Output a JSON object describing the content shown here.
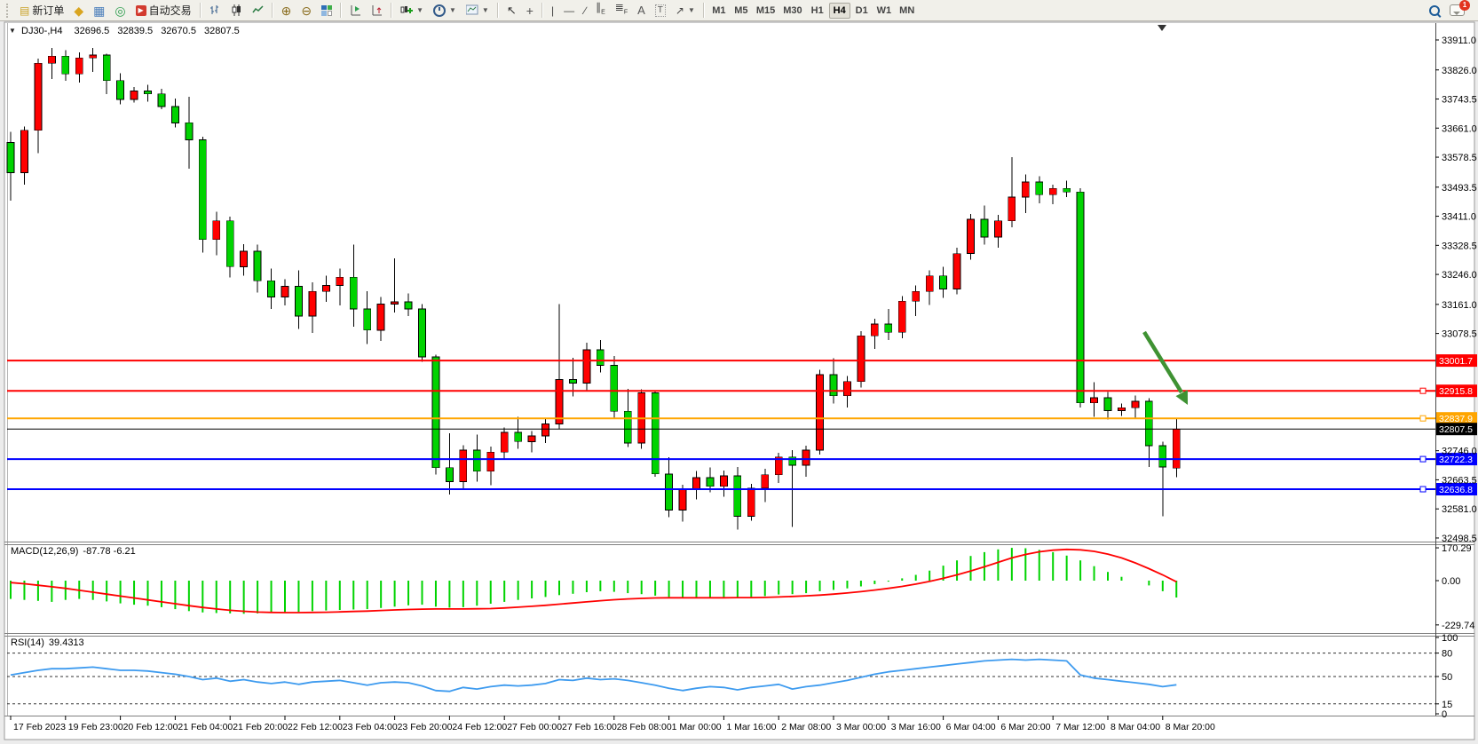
{
  "toolbar": {
    "new_order_label": "新订单",
    "autotrade_label": "自动交易",
    "timeframes": [
      "M1",
      "M5",
      "M15",
      "M30",
      "H1",
      "H4",
      "D1",
      "W1",
      "MN"
    ],
    "active_timeframe": "H4",
    "notification_count": "1",
    "icons": [
      "new-order-icon",
      "gold-diamond-icon",
      "charts-window-icon",
      "signals-icon",
      "autotrade-icon",
      "bar-chart-icon",
      "candlestick-chart-icon",
      "line-chart-icon",
      "zoom-in-icon",
      "zoom-out-icon",
      "tile-windows-icon",
      "data-window-icon",
      "navigator-icon",
      "new-chart-icon",
      "period-icon",
      "template-icon",
      "cursor-icon",
      "crosshair-icon",
      "vertical-line-icon",
      "horizontal-line-icon",
      "trendline-icon",
      "channel-icon",
      "fibonacci-icon",
      "text-icon",
      "text-label-icon",
      "arrows-icon",
      "search-icon",
      "chat-icon"
    ]
  },
  "chart": {
    "title": {
      "symbol": "DJ30-,H4",
      "open": "32696.5",
      "high": "32839.5",
      "low": "32670.5",
      "close": "32807.5"
    },
    "colors": {
      "bull": "#ff0000",
      "bear": "#00d300",
      "current_line": "#000000",
      "arrow": "#3f9233",
      "rsi": "#3e9bef",
      "macd_hist": "#00d300",
      "macd_signal": "#ff0000"
    },
    "y_axis": [
      {
        "v": 33911.0,
        "label": "33911.0"
      },
      {
        "v": 33826.0,
        "label": "33826.0"
      },
      {
        "v": 33743.5,
        "label": "33743.5"
      },
      {
        "v": 33661.0,
        "label": "33661.0"
      },
      {
        "v": 33578.5,
        "label": "33578.5"
      },
      {
        "v": 33493.5,
        "label": "33493.5"
      },
      {
        "v": 33411.0,
        "label": "33411.0"
      },
      {
        "v": 33328.5,
        "label": "33328.5"
      },
      {
        "v": 33246.0,
        "label": "33246.0"
      },
      {
        "v": 33161.0,
        "label": "33161.0"
      },
      {
        "v": 33078.5,
        "label": "33078.5"
      },
      {
        "v": 32746.0,
        "label": "32746.0"
      },
      {
        "v": 32663.5,
        "label": "32663.5"
      },
      {
        "v": 32581.0,
        "label": "32581.0"
      },
      {
        "v": 32498.5,
        "label": "32498.5"
      }
    ],
    "h_lines": [
      {
        "price": 33001.7,
        "label": "33001.7",
        "color": "#ff0000",
        "handle": false,
        "current": false
      },
      {
        "price": 32915.8,
        "label": "32915.8",
        "color": "#ff0000",
        "handle": true,
        "current": false
      },
      {
        "price": 32837.9,
        "label": "32837.9",
        "color": "#ffa500",
        "handle": true,
        "current": false
      },
      {
        "price": 32807.5,
        "label": "32807.5",
        "color": "#000000",
        "handle": false,
        "current": true
      },
      {
        "price": 32722.3,
        "label": "32722.3",
        "color": "#0000ff",
        "handle": true,
        "current": false
      },
      {
        "price": 32636.8,
        "label": "32636.8",
        "color": "#0000ff",
        "handle": true,
        "current": false
      }
    ],
    "time_labels": [
      "17 Feb 2023",
      "19 Feb 23:00",
      "20 Feb 12:00",
      "21 Feb 04:00",
      "21 Feb 20:00",
      "22 Feb 12:00",
      "23 Feb 04:00",
      "23 Feb 20:00",
      "24 Feb 12:00",
      "27 Feb 00:00",
      "27 Feb 16:00",
      "28 Feb 08:00",
      "1 Mar 00:00",
      "1 Mar 16:00",
      "2 Mar 08:00",
      "3 Mar 00:00",
      "3 Mar 16:00",
      "6 Mar 04:00",
      "6 Mar 20:00",
      "7 Mar 12:00",
      "8 Mar 04:00",
      "8 Mar 20:00"
    ]
  },
  "chart_data": {
    "type": "candlestick",
    "note": "red = bullish, green = bearish (CN convention), values [open,high,low,close]",
    "candles": [
      [
        33620,
        33650,
        33455,
        33535
      ],
      [
        33535,
        33665,
        33500,
        33655
      ],
      [
        33655,
        33858,
        33590,
        33845
      ],
      [
        33845,
        33888,
        33800,
        33865
      ],
      [
        33865,
        33882,
        33795,
        33815
      ],
      [
        33815,
        33876,
        33790,
        33860
      ],
      [
        33860,
        33888,
        33820,
        33868
      ],
      [
        33868,
        33872,
        33758,
        33796
      ],
      [
        33796,
        33816,
        33728,
        33742
      ],
      [
        33742,
        33778,
        33734,
        33766
      ],
      [
        33766,
        33784,
        33736,
        33758
      ],
      [
        33758,
        33772,
        33714,
        33722
      ],
      [
        33722,
        33745,
        33663,
        33676
      ],
      [
        33676,
        33750,
        33546,
        33628
      ],
      [
        33628,
        33636,
        33308,
        33345
      ],
      [
        33345,
        33424,
        33300,
        33398
      ],
      [
        33398,
        33410,
        33238,
        33268
      ],
      [
        33268,
        33332,
        33242,
        33312
      ],
      [
        33312,
        33330,
        33195,
        33228
      ],
      [
        33228,
        33262,
        33148,
        33182
      ],
      [
        33182,
        33232,
        33158,
        33212
      ],
      [
        33212,
        33258,
        33092,
        33128
      ],
      [
        33128,
        33224,
        33080,
        33198
      ],
      [
        33198,
        33242,
        33168,
        33215
      ],
      [
        33215,
        33262,
        33158,
        33238
      ],
      [
        33238,
        33330,
        33098,
        33148
      ],
      [
        33148,
        33198,
        33048,
        33088
      ],
      [
        33088,
        33182,
        33058,
        33162
      ],
      [
        33162,
        33292,
        33138,
        33168
      ],
      [
        33168,
        33192,
        33128,
        33148
      ],
      [
        33148,
        33162,
        32998,
        33012
      ],
      [
        33012,
        33018,
        32678,
        32698
      ],
      [
        32698,
        32795,
        32622,
        32658
      ],
      [
        32658,
        32762,
        32638,
        32748
      ],
      [
        32748,
        32792,
        32658,
        32688
      ],
      [
        32688,
        32758,
        32648,
        32742
      ],
      [
        32742,
        32812,
        32722,
        32798
      ],
      [
        32798,
        32842,
        32752,
        32772
      ],
      [
        32772,
        32802,
        32742,
        32788
      ],
      [
        32788,
        32838,
        32768,
        32822
      ],
      [
        32822,
        33162,
        32808,
        32948
      ],
      [
        32948,
        33010,
        32900,
        32938
      ],
      [
        32938,
        33052,
        32915,
        33032
      ],
      [
        33032,
        33060,
        32968,
        32988
      ],
      [
        32988,
        33015,
        32840,
        32858
      ],
      [
        32858,
        32922,
        32756,
        32768
      ],
      [
        32768,
        32920,
        32752,
        32910
      ],
      [
        32910,
        32916,
        32672,
        32680
      ],
      [
        32680,
        32728,
        32558,
        32578
      ],
      [
        32578,
        32650,
        32545,
        32636
      ],
      [
        32636,
        32688,
        32608,
        32670
      ],
      [
        32670,
        32698,
        32628,
        32645
      ],
      [
        32645,
        32690,
        32615,
        32675
      ],
      [
        32675,
        32700,
        32522,
        32560
      ],
      [
        32560,
        32652,
        32548,
        32640
      ],
      [
        32640,
        32695,
        32600,
        32678
      ],
      [
        32678,
        32740,
        32655,
        32728
      ],
      [
        32728,
        32748,
        32530,
        32705
      ],
      [
        32705,
        32760,
        32672,
        32748
      ],
      [
        32748,
        32975,
        32735,
        32962
      ],
      [
        32962,
        33008,
        32880,
        32902
      ],
      [
        32902,
        32958,
        32868,
        32942
      ],
      [
        32942,
        33085,
        32925,
        33072
      ],
      [
        33072,
        33120,
        33035,
        33105
      ],
      [
        33105,
        33148,
        33060,
        33082
      ],
      [
        33082,
        33185,
        33065,
        33170
      ],
      [
        33170,
        33215,
        33128,
        33198
      ],
      [
        33198,
        33258,
        33160,
        33242
      ],
      [
        33242,
        33268,
        33180,
        33205
      ],
      [
        33205,
        33322,
        33190,
        33305
      ],
      [
        33305,
        33418,
        33288,
        33402
      ],
      [
        33402,
        33442,
        33330,
        33352
      ],
      [
        33352,
        33415,
        33322,
        33398
      ],
      [
        33398,
        33578,
        33380,
        33465
      ],
      [
        33465,
        33530,
        33420,
        33508
      ],
      [
        33508,
        33525,
        33448,
        33472
      ],
      [
        33472,
        33500,
        33445,
        33490
      ],
      [
        33490,
        33512,
        33465,
        33480
      ],
      [
        33480,
        33490,
        32868,
        32882
      ],
      [
        32882,
        32940,
        32842,
        32896
      ],
      [
        32896,
        32912,
        32835,
        32860
      ],
      [
        32860,
        32880,
        32845,
        32868
      ],
      [
        32868,
        32902,
        32840,
        32886
      ],
      [
        32886,
        32895,
        32700,
        32760
      ],
      [
        32760,
        32772,
        32560,
        32700
      ],
      [
        32696.5,
        32839.5,
        32670.5,
        32807.5
      ]
    ],
    "macd": {
      "label": "MACD(12,26,9)",
      "values": "-87.78 -6.21",
      "axis": [
        {
          "v": 170.29,
          "label": "170.29"
        },
        {
          "v": 0,
          "label": "0.00"
        },
        {
          "v": -229.74,
          "label": "-229.74"
        }
      ],
      "hist": [
        -95,
        -100,
        -105,
        -110,
        -100,
        -95,
        -100,
        -108,
        -118,
        -125,
        -130,
        -138,
        -148,
        -158,
        -165,
        -168,
        -170,
        -172,
        -170,
        -168,
        -165,
        -162,
        -158,
        -155,
        -152,
        -150,
        -148,
        -142,
        -135,
        -128,
        -125,
        -135,
        -140,
        -138,
        -130,
        -120,
        -110,
        -100,
        -92,
        -85,
        -75,
        -68,
        -60,
        -55,
        -58,
        -65,
        -70,
        -78,
        -85,
        -90,
        -92,
        -90,
        -86,
        -88,
        -85,
        -80,
        -72,
        -70,
        -65,
        -55,
        -48,
        -40,
        -30,
        -18,
        -5,
        12,
        30,
        52,
        78,
        105,
        128,
        148,
        162,
        170,
        168,
        160,
        148,
        130,
        105,
        75,
        45,
        20,
        0,
        -25,
        -55,
        -87.78
      ],
      "signal": [
        -10,
        -16,
        -24,
        -32,
        -40,
        -50,
        -60,
        -70,
        -80,
        -90,
        -100,
        -110,
        -120,
        -130,
        -139,
        -147,
        -154,
        -159,
        -163,
        -165,
        -166,
        -166,
        -165,
        -164,
        -162,
        -160,
        -158,
        -155,
        -152,
        -150,
        -148,
        -147,
        -147,
        -147,
        -146,
        -145,
        -142,
        -138,
        -133,
        -128,
        -122,
        -116,
        -110,
        -104,
        -99,
        -95,
        -92,
        -90,
        -89,
        -89,
        -89,
        -89,
        -89,
        -88,
        -88,
        -87,
        -85,
        -82,
        -79,
        -75,
        -70,
        -64,
        -57,
        -49,
        -40,
        -30,
        -18,
        -4,
        12,
        30,
        50,
        72,
        95,
        118,
        136,
        150,
        158,
        162,
        160,
        152,
        138,
        118,
        92,
        62,
        30,
        -6.21
      ]
    },
    "rsi": {
      "label": "RSI(14)",
      "value": "39.4313",
      "axis": [
        {
          "v": 100,
          "label": "100"
        },
        {
          "v": 80,
          "label": "80"
        },
        {
          "v": 50,
          "label": "50"
        },
        {
          "v": 15,
          "label": "15"
        },
        {
          "v": 0,
          "label": "0"
        }
      ],
      "levels": [
        80,
        50,
        15
      ],
      "values": [
        52,
        55,
        58,
        60,
        60,
        61,
        62,
        60,
        58,
        58,
        57,
        55,
        53,
        50,
        46,
        48,
        44,
        46,
        43,
        41,
        43,
        40,
        43,
        44,
        45,
        42,
        39,
        42,
        43,
        42,
        38,
        32,
        31,
        36,
        34,
        37,
        39,
        38,
        39,
        41,
        46,
        45,
        48,
        46,
        47,
        45,
        42,
        39,
        35,
        32,
        35,
        37,
        36,
        33,
        36,
        38,
        40,
        34,
        37,
        39,
        42,
        45,
        49,
        53,
        56,
        58,
        60,
        62,
        64,
        66,
        68,
        70,
        71,
        72,
        71,
        72,
        71,
        70,
        52,
        48,
        46,
        44,
        42,
        40,
        37,
        39.43
      ]
    }
  },
  "macd": {
    "label": "MACD(12,26,9)",
    "values": "-87.78 -6.21"
  },
  "rsi": {
    "label": "RSI(14)",
    "value": "39.4313"
  }
}
